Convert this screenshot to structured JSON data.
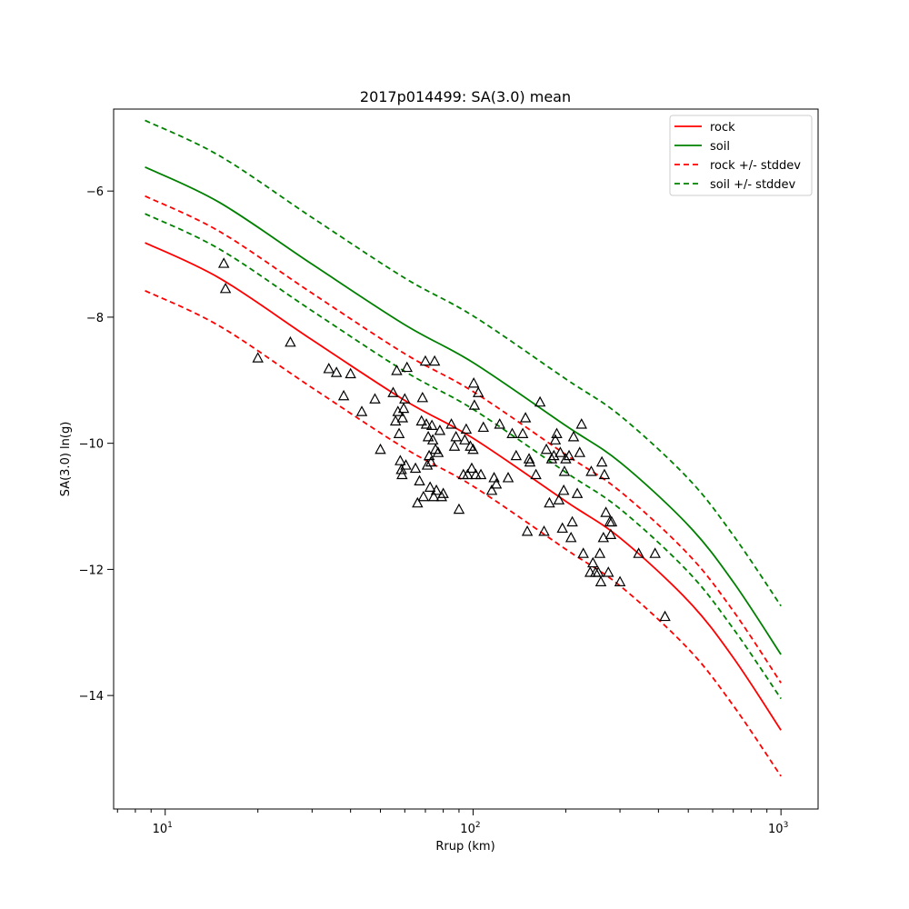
{
  "chart_data": {
    "type": "scatter",
    "title": "2017p014499: SA(3.0) mean",
    "xlabel": "Rrup (km)",
    "ylabel": "SA(3.0) ln(g)",
    "xscale": "log",
    "xlim": [
      6.8,
      1320
    ],
    "ylim": [
      -15.8,
      -4.7
    ],
    "x_ticks": [
      10,
      100,
      1000
    ],
    "x_tick_labels": [
      {
        "base": "10",
        "exp": "1"
      },
      {
        "base": "10",
        "exp": "2"
      },
      {
        "base": "10",
        "exp": "3"
      }
    ],
    "y_ticks": [
      -14,
      -12,
      -10,
      -8,
      -6
    ],
    "y_tick_labels": [
      "−14",
      "−12",
      "−10",
      "−8",
      "−6"
    ],
    "grid": false,
    "legend_position": "top-right",
    "series": [
      {
        "name": "rock",
        "color": "#ff0000",
        "dash": "solid",
        "x": [
          8.6,
          15,
          30,
          60,
          100,
          200,
          300,
          500,
          700,
          1000
        ],
        "y": [
          -6.82,
          -7.38,
          -8.36,
          -9.32,
          -9.92,
          -10.92,
          -11.5,
          -12.5,
          -13.4,
          -14.55
        ]
      },
      {
        "name": "soil",
        "color": "#008000",
        "dash": "solid",
        "x": [
          8.6,
          15,
          30,
          60,
          100,
          200,
          300,
          500,
          700,
          1000
        ],
        "y": [
          -5.62,
          -6.18,
          -7.16,
          -8.12,
          -8.72,
          -9.72,
          -10.3,
          -11.3,
          -12.2,
          -13.35
        ]
      },
      {
        "name": "rock +/- stddev",
        "color": "#ff0000",
        "dash": "dashed",
        "x": [
          8.6,
          15,
          30,
          60,
          100,
          200,
          300,
          500,
          700,
          1000
        ],
        "y": [
          -6.08,
          -6.64,
          -7.62,
          -8.58,
          -9.18,
          -10.18,
          -10.76,
          -11.76,
          -12.66,
          -13.8
        ]
      },
      {
        "name": "",
        "color": "#ff0000",
        "dash": "dashed",
        "x": [
          8.6,
          15,
          30,
          60,
          100,
          200,
          300,
          500,
          700,
          1000
        ],
        "y": [
          -7.58,
          -8.14,
          -9.12,
          -10.08,
          -10.68,
          -11.68,
          -12.26,
          -13.26,
          -14.16,
          -15.28
        ]
      },
      {
        "name": "soil +/- stddev",
        "color": "#008000",
        "dash": "dashed",
        "x": [
          8.6,
          15,
          30,
          60,
          100,
          200,
          300,
          500,
          700,
          1000
        ],
        "y": [
          -4.88,
          -5.44,
          -6.42,
          -7.38,
          -7.98,
          -8.98,
          -9.56,
          -10.56,
          -11.46,
          -12.58
        ]
      },
      {
        "name": "",
        "color": "#008000",
        "dash": "dashed",
        "x": [
          8.6,
          15,
          30,
          60,
          100,
          200,
          300,
          500,
          700,
          1000
        ],
        "y": [
          -6.36,
          -6.92,
          -7.9,
          -8.86,
          -9.46,
          -10.46,
          -11.04,
          -12.04,
          -12.94,
          -14.05
        ]
      }
    ],
    "observations": {
      "marker": "open-triangle",
      "color": "#000000",
      "points": [
        [
          15.5,
          -7.15
        ],
        [
          15.7,
          -7.55
        ],
        [
          20,
          -8.65
        ],
        [
          25.5,
          -8.4
        ],
        [
          34,
          -8.82
        ],
        [
          36,
          -8.88
        ],
        [
          38,
          -9.25
        ],
        [
          40,
          -8.9
        ],
        [
          43.5,
          -9.5
        ],
        [
          48,
          -9.3
        ],
        [
          50,
          -10.1
        ],
        [
          55,
          -9.2
        ],
        [
          56,
          -9.65
        ],
        [
          56.5,
          -8.85
        ],
        [
          57,
          -9.5
        ],
        [
          57.5,
          -9.85
        ],
        [
          58,
          -10.28
        ],
        [
          58.5,
          -10.42
        ],
        [
          58.8,
          -10.5
        ],
        [
          59,
          -9.6
        ],
        [
          59.5,
          -9.45
        ],
        [
          60,
          -9.3
        ],
        [
          60.5,
          -10.35
        ],
        [
          61,
          -8.8
        ],
        [
          65,
          -10.4
        ],
        [
          66,
          -10.95
        ],
        [
          67,
          -10.6
        ],
        [
          68,
          -9.65
        ],
        [
          68.5,
          -9.28
        ],
        [
          69,
          -10.85
        ],
        [
          70,
          -8.7
        ],
        [
          70.5,
          -9.7
        ],
        [
          71,
          -10.35
        ],
        [
          71.5,
          -9.9
        ],
        [
          72,
          -10.2
        ],
        [
          72.5,
          -10.7
        ],
        [
          73,
          -10.3
        ],
        [
          73.5,
          -9.72
        ],
        [
          74,
          -9.95
        ],
        [
          74.5,
          -10.85
        ],
        [
          75,
          -8.7
        ],
        [
          75.5,
          -10.1
        ],
        [
          76,
          -10.75
        ],
        [
          77,
          -10.15
        ],
        [
          78,
          -9.8
        ],
        [
          79,
          -10.85
        ],
        [
          80,
          -10.8
        ],
        [
          85,
          -9.7
        ],
        [
          87,
          -10.05
        ],
        [
          88,
          -9.9
        ],
        [
          90,
          -11.05
        ],
        [
          93,
          -10.5
        ],
        [
          94,
          -9.95
        ],
        [
          95,
          -9.78
        ],
        [
          96,
          -10.5
        ],
        [
          98,
          -10.05
        ],
        [
          99,
          -10.4
        ],
        [
          100,
          -10.1
        ],
        [
          100.5,
          -9.05
        ],
        [
          101,
          -9.4
        ],
        [
          102,
          -10.5
        ],
        [
          104,
          -9.2
        ],
        [
          106,
          -10.5
        ],
        [
          108,
          -9.75
        ],
        [
          115,
          -10.75
        ],
        [
          117,
          -10.55
        ],
        [
          119,
          -10.65
        ],
        [
          122,
          -9.7
        ],
        [
          130,
          -10.55
        ],
        [
          134,
          -9.85
        ],
        [
          138,
          -10.2
        ],
        [
          145,
          -9.85
        ],
        [
          148,
          -9.6
        ],
        [
          150,
          -11.4
        ],
        [
          152,
          -10.25
        ],
        [
          153,
          -10.3
        ],
        [
          160,
          -10.5
        ],
        [
          165,
          -9.35
        ],
        [
          170,
          -11.4
        ],
        [
          173,
          -10.1
        ],
        [
          177,
          -10.95
        ],
        [
          180,
          -10.25
        ],
        [
          183,
          -10.2
        ],
        [
          185,
          -9.95
        ],
        [
          187,
          -9.85
        ],
        [
          190,
          -10.9
        ],
        [
          192,
          -10.15
        ],
        [
          195,
          -11.35
        ],
        [
          197,
          -10.75
        ],
        [
          198,
          -10.45
        ],
        [
          200,
          -10.25
        ],
        [
          205,
          -10.2
        ],
        [
          208,
          -11.5
        ],
        [
          210,
          -11.25
        ],
        [
          212,
          -9.9
        ],
        [
          218,
          -10.8
        ],
        [
          222,
          -10.15
        ],
        [
          225,
          -9.7
        ],
        [
          228,
          -11.75
        ],
        [
          240,
          -12.05
        ],
        [
          242,
          -10.45
        ],
        [
          245,
          -11.9
        ],
        [
          250,
          -12.05
        ],
        [
          255,
          -12.05
        ],
        [
          258,
          -11.75
        ],
        [
          260,
          -12.2
        ],
        [
          262,
          -10.3
        ],
        [
          265,
          -11.5
        ],
        [
          267,
          -10.5
        ],
        [
          270,
          -11.1
        ],
        [
          275,
          -12.05
        ],
        [
          278,
          -11.25
        ],
        [
          280,
          -11.45
        ],
        [
          282,
          -11.25
        ],
        [
          300,
          -12.2
        ],
        [
          345,
          -11.75
        ],
        [
          390,
          -11.75
        ],
        [
          420,
          -12.75
        ]
      ]
    }
  }
}
